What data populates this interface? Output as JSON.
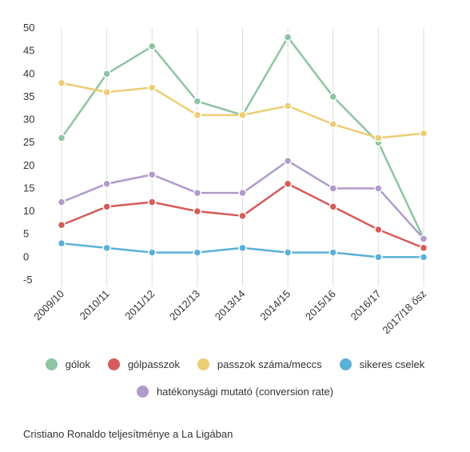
{
  "chart_data": {
    "type": "line",
    "categories": [
      "2009/10",
      "2010/11",
      "2011/12",
      "2012/13",
      "2013/14",
      "2014/15",
      "2015/16",
      "2016/17",
      "2017/18 ősz"
    ],
    "ylim": [
      -5,
      50
    ],
    "yticks": [
      -5,
      0,
      5,
      10,
      15,
      20,
      25,
      30,
      35,
      40,
      45,
      50
    ],
    "grid": "vertical",
    "legend_position": "bottom",
    "series": [
      {
        "name": "gólok",
        "color": "#8fc4a3",
        "values": [
          26,
          40,
          46,
          34,
          31,
          48,
          35,
          25,
          4
        ]
      },
      {
        "name": "gólpasszok",
        "color": "#d65b5b",
        "values": [
          7,
          11,
          12,
          10,
          9,
          16,
          11,
          6,
          2
        ]
      },
      {
        "name": "passzok száma/meccs",
        "color": "#ebcd74",
        "values": [
          38,
          36,
          37,
          31,
          31,
          33,
          29,
          26,
          27
        ]
      },
      {
        "name": "sikeres cselek",
        "color": "#5bb0da",
        "values": [
          3,
          2,
          1,
          1,
          2,
          1,
          1,
          0,
          0
        ]
      },
      {
        "name": "hatékonysági mutató (conversion rate)",
        "color": "#b19bcb",
        "values": [
          12,
          16,
          18,
          14,
          14,
          21,
          15,
          15,
          4
        ]
      }
    ],
    "caption": "Cristiano Ronaldo teljesítménye a La Ligában"
  }
}
